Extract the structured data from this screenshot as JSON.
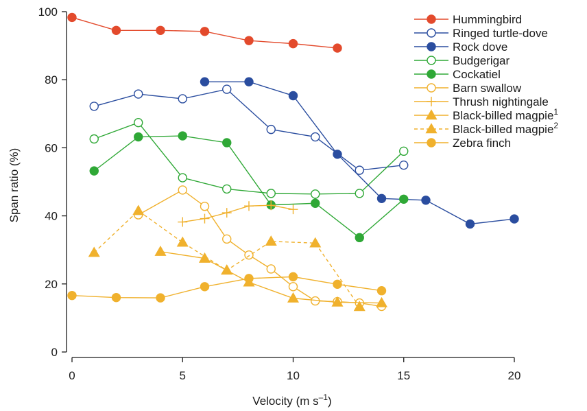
{
  "chart_data": {
    "type": "line",
    "title": "",
    "xlabel": "Velocity (m s",
    "xlabel_sup": "–1",
    "xlabel_end": ")",
    "ylabel": "Span ratio (%)",
    "xlim": [
      0,
      20
    ],
    "ylim": [
      0,
      100
    ],
    "xticks": [
      "0",
      "5",
      "10",
      "15",
      "20"
    ],
    "yticks": [
      "0",
      "20",
      "40",
      "60",
      "80",
      "100"
    ],
    "grid": false,
    "legend_position": "top-right",
    "series": [
      {
        "name": "Hummingbird",
        "sup": "",
        "color": "#e34a2c",
        "marker": "circle",
        "fill": "filled",
        "dash": "solid",
        "x": [
          0,
          2,
          4,
          6,
          8,
          10,
          12
        ],
        "y": [
          98.3,
          94.5,
          94.5,
          94.2,
          91.5,
          90.6,
          89.3
        ]
      },
      {
        "name": "Ringed turtle-dove",
        "sup": "",
        "color": "#2a4d9f",
        "marker": "circle",
        "fill": "open",
        "dash": "solid",
        "x": [
          1,
          3,
          5,
          7,
          9,
          11,
          13,
          15
        ],
        "y": [
          72.2,
          75.8,
          74.4,
          77.2,
          65.4,
          63.2,
          53.4,
          54.9
        ]
      },
      {
        "name": "Rock dove",
        "sup": "",
        "color": "#2a4d9f",
        "marker": "circle",
        "fill": "filled",
        "dash": "solid",
        "x": [
          6,
          8,
          10,
          12,
          14,
          16,
          18,
          20
        ],
        "y": [
          79.4,
          79.4,
          75.3,
          58.1,
          45.1,
          44.6,
          37.6,
          39.1
        ]
      },
      {
        "name": "Budgerigar",
        "sup": "",
        "color": "#2fa836",
        "marker": "circle",
        "fill": "open",
        "dash": "solid",
        "x": [
          1,
          3,
          5,
          7,
          9,
          11,
          13,
          15
        ],
        "y": [
          62.6,
          67.4,
          51.2,
          47.9,
          46.6,
          46.4,
          46.6,
          59.0
        ]
      },
      {
        "name": "Cockatiel",
        "sup": "",
        "color": "#2fa836",
        "marker": "circle",
        "fill": "filled",
        "dash": "solid",
        "x": [
          1,
          3,
          5,
          7,
          9,
          11,
          13,
          15
        ],
        "y": [
          53.2,
          63.2,
          63.5,
          61.5,
          43.2,
          43.7,
          33.6,
          44.9
        ]
      },
      {
        "name": "Barn swallow",
        "sup": "",
        "color": "#f0b12d",
        "marker": "circle",
        "fill": "open",
        "dash": "solid",
        "x": [
          3,
          5,
          6,
          7,
          8,
          9,
          10,
          11,
          12,
          13,
          14
        ],
        "y": [
          40.3,
          47.6,
          42.8,
          33.2,
          28.5,
          24.4,
          19.2,
          15.0,
          14.8,
          14.4,
          13.4
        ]
      },
      {
        "name": "Thrush nightingale",
        "sup": "",
        "color": "#f0b12d",
        "marker": "plus",
        "fill": "none",
        "dash": "solid",
        "x": [
          5,
          6,
          7,
          8,
          9,
          10
        ],
        "y": [
          38.2,
          39.2,
          40.9,
          42.9,
          43.1,
          41.9
        ]
      },
      {
        "name": "Black-billed magpie",
        "sup": "1",
        "color": "#f0b12d",
        "marker": "triangle",
        "fill": "filled",
        "dash": "solid",
        "x": [
          4,
          6,
          7,
          8,
          10,
          12,
          14
        ],
        "y": [
          29.5,
          27.5,
          24.0,
          20.5,
          15.8,
          14.6,
          14.4
        ]
      },
      {
        "name": "Black-billed magpie",
        "sup": "2",
        "color": "#f0b12d",
        "marker": "triangle",
        "fill": "filled",
        "dash": "dashed",
        "x": [
          1,
          3,
          5,
          7,
          9,
          11,
          13
        ],
        "y": [
          29.2,
          41.5,
          32.2,
          24.0,
          32.5,
          32.0,
          13.3
        ]
      },
      {
        "name": "Zebra finch",
        "sup": "",
        "color": "#f0b12d",
        "marker": "circle",
        "fill": "filled",
        "dash": "solid",
        "x": [
          0,
          2,
          4,
          6,
          8,
          10,
          12,
          14
        ],
        "y": [
          16.6,
          16.0,
          15.9,
          19.2,
          21.6,
          22.1,
          19.9,
          18.0
        ]
      }
    ]
  }
}
